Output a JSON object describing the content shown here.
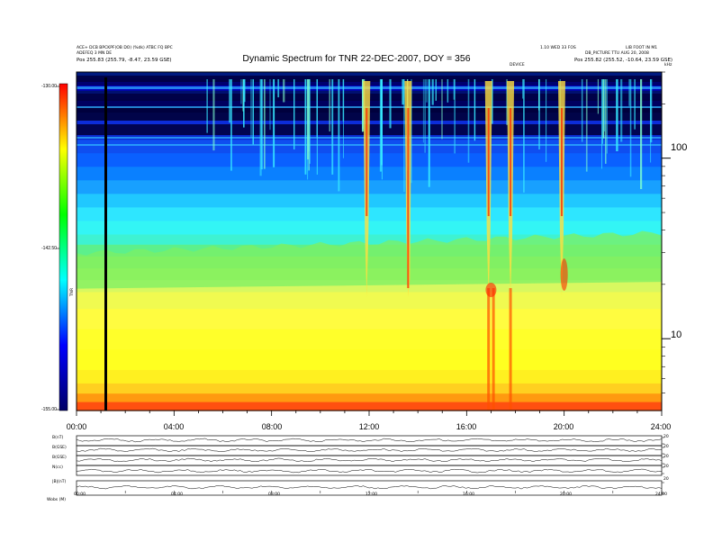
{
  "title": "Dynamic Spectrum for TNR 22-DEC-2007, DOY = 356",
  "header": {
    "left_line1": "ACE+ DCB BPCKPF(OB DO) (%dk) ATBC FQ BPC",
    "left_line2": "ADEFEQ 3 MN DE",
    "left_line3": "Pos  255.83 (255.79, -8.47, 23.59 GSE)",
    "right_line1": "1.10 WED 33 FOS",
    "right_line2": "LIB FOOT IN  M1",
    "right_line3": "DB_PICTURE  TTU AUG 20, 2008",
    "right_line4": "Pos  255.82 (255.52, -10.64, 23.59 GSE)",
    "center_tag": "DEVICE",
    "khz_label": "kHz"
  },
  "colorbar": {
    "unit": "TNR",
    "ticks": [
      "-130.00",
      "-142.50",
      "-155.00"
    ],
    "stops": [
      "#000066",
      "#0000ff",
      "#00ffff",
      "#00ff00",
      "#ffff00",
      "#ff0000"
    ]
  },
  "footer_label": "Wobs  (M)",
  "chart_data": {
    "type": "heatmap",
    "title": "Dynamic Spectrum for TNR 22-DEC-2007, DOY = 356",
    "x_ticks": [
      "00:00",
      "04:00",
      "08:00",
      "12:00",
      "16:00",
      "20:00",
      "24:00"
    ],
    "x_range_hours": [
      0,
      24
    ],
    "y_scale": "log",
    "y_unit": "kHz",
    "y_ticks": [
      100,
      10
    ],
    "y_range_khz": [
      4,
      300
    ],
    "z_range": [
      -155.0,
      -130.0
    ],
    "colormap": [
      "#000066",
      "#0000ff",
      "#00ffff",
      "#00ff00",
      "#ffff00",
      "#ff0000"
    ],
    "data_gap_hour": 1.2,
    "radio_bursts_hours": [
      11.9,
      13.6,
      16.9,
      17.8,
      19.9
    ]
  },
  "panels": [
    {
      "label": "B(nT)",
      "ticks": [
        "20",
        "0"
      ]
    },
    {
      "label": "B(GSE)",
      "ticks": [
        "20",
        "0"
      ]
    },
    {
      "label": "B(GSE)",
      "ticks": [
        "20",
        "0"
      ]
    },
    {
      "label": "N(cc)",
      "ticks": [
        "20",
        "0"
      ]
    },
    {
      "label": "|B|(nT)",
      "ticks": [
        "20",
        "0"
      ]
    }
  ],
  "bottom_ticks": [
    "00:00",
    "04:00",
    "08:00",
    "12:00",
    "16:00",
    "20:00",
    "24:00"
  ]
}
